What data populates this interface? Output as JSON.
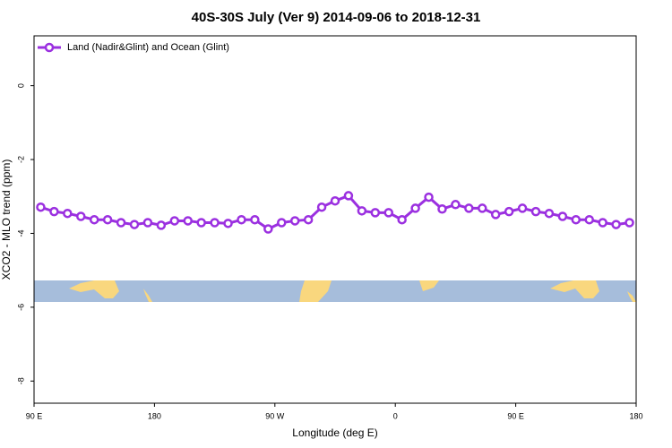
{
  "chart_data": {
    "type": "line",
    "title": "40S-30S July (Ver 9)   2014-09-06 to 2018-12-31",
    "xlabel": "Longitude (deg E)",
    "ylabel": "XCO2 - MLO trend (ppm)",
    "x": [
      95,
      105,
      115,
      125,
      135,
      145,
      155,
      165,
      175,
      185,
      195,
      205,
      215,
      225,
      235,
      245,
      255,
      265,
      275,
      285,
      295,
      305,
      315,
      325,
      335,
      345,
      355,
      365,
      375,
      385,
      395,
      405,
      415,
      425,
      435,
      445,
      455,
      465,
      475,
      485,
      495,
      505,
      515,
      525,
      535
    ],
    "series": [
      {
        "name": "Land (Nadir&Glint) and Ocean (Glint)",
        "color": "#9b30e0",
        "values": [
          -3.29,
          -3.41,
          -3.46,
          -3.54,
          -3.63,
          -3.63,
          -3.71,
          -3.76,
          -3.71,
          -3.78,
          -3.66,
          -3.66,
          -3.71,
          -3.71,
          -3.73,
          -3.63,
          -3.63,
          -3.88,
          -3.71,
          -3.66,
          -3.63,
          -3.29,
          -3.12,
          -2.98,
          -3.39,
          -3.44,
          -3.44,
          -3.63,
          -3.32,
          -3.02,
          -3.34,
          -3.22,
          -3.32,
          -3.32,
          -3.49,
          -3.41,
          -3.32,
          -3.41,
          -3.46,
          -3.54,
          -3.63,
          -3.63,
          -3.71,
          -3.76,
          -3.71
        ]
      }
    ],
    "xlim": [
      90,
      540
    ],
    "xticks": [
      {
        "value": 90,
        "label": "90 E"
      },
      180,
      {
        "value": 270,
        "label": "90 W"
      },
      {
        "value": 360,
        "label": "0"
      },
      {
        "value": 450,
        "label": "90 E"
      },
      {
        "value": 540,
        "label": "180"
      }
    ],
    "ylim": [
      -8.6,
      1.35
    ],
    "yticks": [
      0,
      -2,
      -4,
      -6,
      -8
    ],
    "legend": "top-left"
  }
}
